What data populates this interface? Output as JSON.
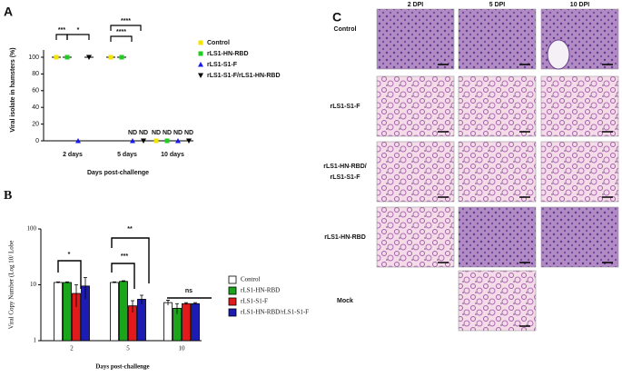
{
  "chart_data": [
    {
      "type": "dot",
      "label": "A",
      "y_label": "Viral isolate in hamsters (%)",
      "x_label": "Days post-challenge",
      "categories": [
        "2 days",
        "5 days",
        "10 days"
      ],
      "ylim": [
        0,
        100
      ],
      "yticks": [
        0,
        20,
        40,
        60,
        80,
        100
      ],
      "series": [
        {
          "name": "Control",
          "color": "#f2e600",
          "marker": "square",
          "values": [
            100,
            100,
            0
          ],
          "value_labels": [
            null,
            null,
            "ND"
          ]
        },
        {
          "name": "rLS1-HN-RBD",
          "color": "#22cc22",
          "marker": "square",
          "values": [
            100,
            100,
            0
          ],
          "value_labels": [
            null,
            null,
            "ND"
          ]
        },
        {
          "name": "rLS1-S1-F",
          "color": "#1a1aee",
          "marker": "triangle",
          "values": [
            0,
            0,
            0
          ],
          "value_labels": [
            null,
            "ND",
            "ND"
          ]
        },
        {
          "name": "rLS1-S1-F/rLS1-HN-RBD",
          "color": "#000000",
          "marker": "triangle-down",
          "values": [
            100,
            0,
            0
          ],
          "value_labels": [
            null,
            "ND",
            "ND"
          ]
        }
      ],
      "significance": [
        "***",
        "*",
        "****",
        "****"
      ]
    },
    {
      "type": "bar",
      "label": "B",
      "y_label": "Viral Copy Number (Log 10/ Lobe",
      "x_label": "Days post-challenge",
      "categories": [
        "2",
        "5",
        "10"
      ],
      "log_scale": true,
      "ylim": [
        1,
        100
      ],
      "yticks": [
        1,
        10,
        100
      ],
      "series": [
        {
          "name": "Control",
          "color": "#ffffff",
          "values": [
            11,
            11,
            4.8
          ],
          "errors": [
            0.3,
            0.3,
            0.5
          ]
        },
        {
          "name": "rLS1-HN-RBD",
          "color": "#1aa51a",
          "values": [
            11,
            11.5,
            3.8
          ],
          "errors": [
            0.3,
            0.3,
            0.8
          ]
        },
        {
          "name": "rLS1-S1-F",
          "color": "#e31a1c",
          "values": [
            7,
            4.2,
            4.6
          ],
          "errors": [
            3,
            1,
            0.2
          ]
        },
        {
          "name": "rLS1-HN-RBD/rLS1-S1-F",
          "color": "#1c1cb4",
          "values": [
            9.5,
            5.5,
            4.6
          ],
          "errors": [
            4,
            1,
            0.2
          ]
        }
      ],
      "significance": [
        "*",
        "**",
        "***",
        "ns"
      ]
    }
  ],
  "histology": {
    "label": "C",
    "columns": [
      "2 DPI",
      "5 DPI",
      "10 DPI"
    ],
    "rows": [
      "Control",
      "rLS1-S1-F",
      "rLS1-HN-RBD/",
      "rLS1-HN-RBD",
      "Mock"
    ],
    "row_label_extra": "rLS1-S1-F"
  }
}
